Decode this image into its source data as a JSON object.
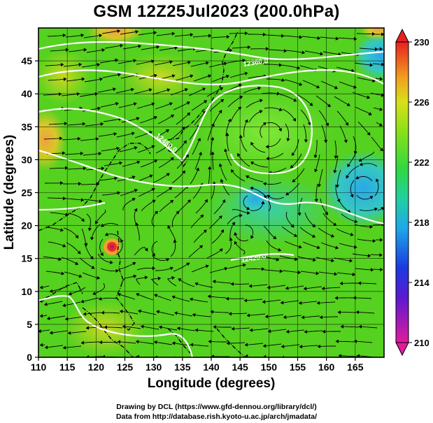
{
  "title": "GSM 12Z25Jul2023 (200.0hPa)",
  "x_axis": {
    "label": "Longitude (degrees)",
    "min": 110,
    "max": 170,
    "ticks": [
      110,
      115,
      120,
      125,
      130,
      135,
      140,
      145,
      150,
      155,
      160,
      165
    ]
  },
  "y_axis": {
    "label": "Latitude (degrees)",
    "min": 0,
    "max": 50,
    "ticks": [
      0,
      5,
      10,
      15,
      20,
      25,
      30,
      35,
      40,
      45
    ]
  },
  "colorbar": {
    "ticks": [
      210,
      214,
      218,
      222,
      226,
      230
    ],
    "min": 210,
    "max": 230,
    "colors": [
      "#e01c9c",
      "#1a1ad0",
      "#1fb0e8",
      "#2ee070",
      "#88e01a",
      "#e8e81a",
      "#f0a020",
      "#e84020"
    ]
  },
  "contour_labels": [
    "12360.0",
    "12480.0",
    "12420.0"
  ],
  "credits": [
    "Drawing by DCL (https://www.gfd-dennou.org/library/dcl/)",
    "Data from http://database.rish.kyoto-u.ac.jp/arch/jmadata/"
  ],
  "features": {
    "typhoon_center": {
      "lon": 122.5,
      "lat": 19.0
    }
  },
  "colors": {
    "field_base": "#55d11f",
    "cool_blue": "#35b9e6",
    "warm_orange": "#f0a040",
    "streamline": "#000000",
    "contour": "#ffffff"
  }
}
